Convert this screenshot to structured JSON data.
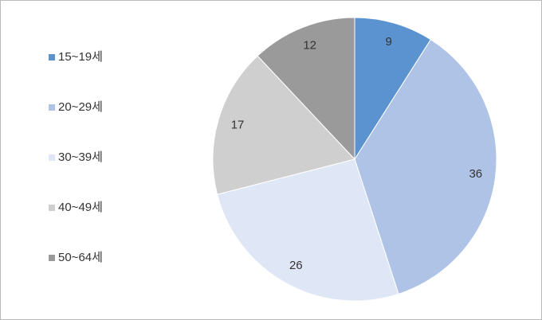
{
  "chart_data": {
    "type": "pie",
    "categories": [
      "15~19세",
      "20~29세",
      "30~39세",
      "40~49세",
      "50~64세"
    ],
    "values": [
      9,
      36,
      26,
      17,
      12
    ],
    "colors": [
      "#5b93d0",
      "#aec3e6",
      "#dfe6f5",
      "#cfcfcf",
      "#9a9a9a"
    ],
    "legend": "left"
  }
}
